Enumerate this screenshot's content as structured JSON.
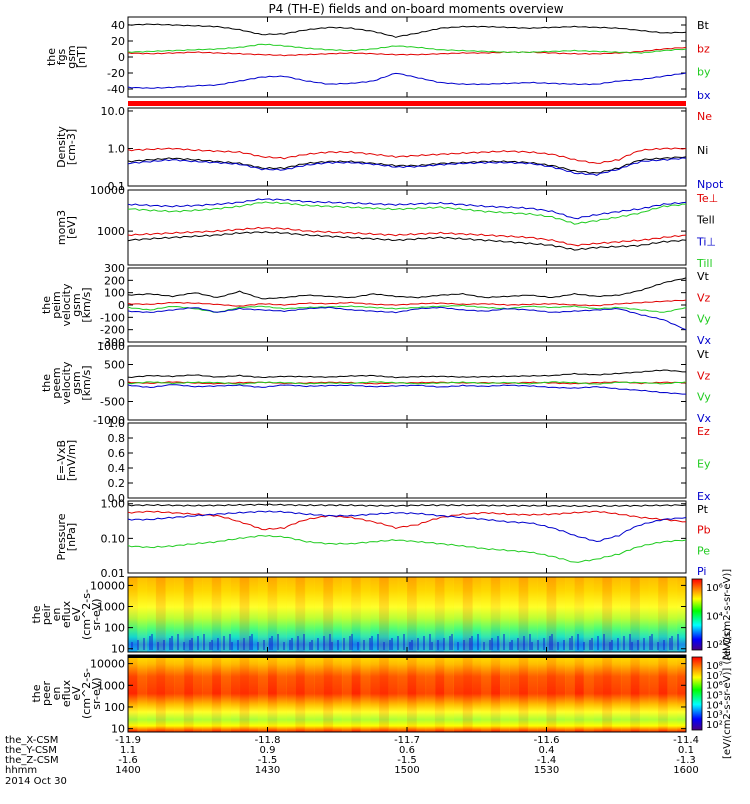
{
  "title": "P4 (TH-E) fields and on-board moments overview",
  "colors": {
    "black": "#000000",
    "red": "#e00000",
    "green": "#22cc22",
    "blue": "#0000cc"
  },
  "chart_data": [
    {
      "type": "line",
      "id": "fgs",
      "ylabel": [
        "the",
        "fgs",
        "gsm",
        "[nT]"
      ],
      "ylim": [
        -50,
        50
      ],
      "ticks": [
        "40",
        "20",
        "0",
        "-20",
        "-40"
      ],
      "legend": [
        {
          "label": "Bt",
          "color": "black"
        },
        {
          "label": "bz",
          "color": "red"
        },
        {
          "label": "by",
          "color": "green"
        },
        {
          "label": "bx",
          "color": "blue"
        }
      ],
      "series": [
        {
          "name": "Bt",
          "color": "black",
          "values": [
            40,
            41,
            40,
            39,
            38,
            34,
            28,
            29,
            34,
            37,
            36,
            32,
            25,
            30,
            36,
            38,
            38,
            37,
            36,
            37,
            38,
            37,
            36,
            33,
            30,
            31
          ]
        },
        {
          "name": "bz",
          "color": "red",
          "values": [
            5,
            4,
            5,
            6,
            5,
            4,
            3,
            2,
            3,
            4,
            5,
            4,
            3,
            3,
            4,
            5,
            5,
            6,
            6,
            5,
            4,
            4,
            5,
            7,
            10,
            12
          ]
        },
        {
          "name": "by",
          "color": "green",
          "values": [
            6,
            7,
            8,
            9,
            10,
            12,
            16,
            14,
            11,
            9,
            8,
            10,
            14,
            12,
            9,
            8,
            7,
            6,
            6,
            7,
            8,
            7,
            6,
            5,
            8,
            10
          ]
        },
        {
          "name": "bx",
          "color": "blue",
          "values": [
            -38,
            -39,
            -38,
            -36,
            -35,
            -30,
            -25,
            -24,
            -30,
            -34,
            -33,
            -30,
            -20,
            -26,
            -32,
            -34,
            -34,
            -33,
            -32,
            -33,
            -34,
            -34,
            -30,
            -28,
            -24,
            -20
          ]
        }
      ]
    },
    {
      "type": "line",
      "id": "density",
      "scale": "log",
      "ylabel": [
        "Density",
        "[cm-3]"
      ],
      "ylim": [
        0.1,
        12
      ],
      "ticks": [
        "10.0",
        "1.0",
        "0.1"
      ],
      "legend": [
        {
          "label": "Ne",
          "color": "red"
        },
        {
          "label": "Ni",
          "color": "black"
        },
        {
          "label": "Npot",
          "color": "blue"
        }
      ],
      "series": [
        {
          "name": "Ne",
          "color": "red",
          "values": [
            0.9,
            0.95,
            1.0,
            0.9,
            0.85,
            0.8,
            0.6,
            0.55,
            0.7,
            0.8,
            0.8,
            0.7,
            0.6,
            0.65,
            0.7,
            0.75,
            0.8,
            0.85,
            0.8,
            0.7,
            0.5,
            0.4,
            0.5,
            0.9,
            1.0,
            1.0
          ]
        },
        {
          "name": "Ni",
          "color": "black",
          "values": [
            0.45,
            0.5,
            0.55,
            0.5,
            0.45,
            0.4,
            0.3,
            0.3,
            0.4,
            0.45,
            0.45,
            0.4,
            0.35,
            0.35,
            0.4,
            0.42,
            0.45,
            0.45,
            0.42,
            0.35,
            0.25,
            0.22,
            0.3,
            0.5,
            0.55,
            0.6
          ]
        },
        {
          "name": "Npot",
          "color": "blue",
          "values": [
            0.4,
            0.45,
            0.5,
            0.45,
            0.42,
            0.38,
            0.28,
            0.27,
            0.36,
            0.42,
            0.42,
            0.38,
            0.32,
            0.33,
            0.37,
            0.4,
            0.42,
            0.42,
            0.4,
            0.32,
            0.22,
            0.2,
            0.28,
            0.45,
            0.5,
            0.55
          ]
        }
      ]
    },
    {
      "type": "line",
      "id": "temp",
      "scale": "log",
      "ylabel": [
        "mom3",
        "[eV]"
      ],
      "ylim": [
        150,
        10000
      ],
      "ticks": [
        "10000",
        "1000"
      ],
      "legend": [
        {
          "label": "Te⊥",
          "color": "red"
        },
        {
          "label": "Tell",
          "color": "black"
        },
        {
          "label": "Ti⊥",
          "color": "blue"
        },
        {
          "label": "Till",
          "color": "green"
        }
      ],
      "series": [
        {
          "name": "Te⊥",
          "color": "red",
          "values": [
            800,
            850,
            900,
            950,
            1000,
            1100,
            1200,
            1150,
            1000,
            950,
            900,
            850,
            800,
            850,
            900,
            850,
            800,
            750,
            700,
            600,
            450,
            500,
            550,
            600,
            700,
            800
          ]
        },
        {
          "name": "Tell",
          "color": "black",
          "values": [
            600,
            650,
            700,
            750,
            800,
            900,
            950,
            900,
            800,
            750,
            700,
            650,
            600,
            650,
            700,
            650,
            600,
            550,
            500,
            450,
            350,
            400,
            420,
            450,
            550,
            600
          ]
        },
        {
          "name": "Ti⊥",
          "color": "blue",
          "values": [
            4500,
            4200,
            4000,
            4200,
            4500,
            5000,
            6000,
            5800,
            5200,
            5000,
            4800,
            4600,
            4400,
            4600,
            4800,
            4400,
            4000,
            3800,
            3600,
            3000,
            2000,
            2500,
            3000,
            3500,
            4500,
            5000
          ]
        },
        {
          "name": "Till",
          "color": "green",
          "values": [
            3500,
            3200,
            3000,
            3200,
            3500,
            4000,
            5000,
            4800,
            4200,
            4000,
            3800,
            3600,
            3400,
            3600,
            3800,
            3400,
            3000,
            2800,
            2600,
            2200,
            1500,
            1800,
            2200,
            2800,
            4000,
            4500
          ]
        }
      ]
    },
    {
      "type": "line",
      "id": "vel_peim",
      "ylabel": [
        "the",
        "peim",
        "velocity",
        "gsm",
        "[km/s]"
      ],
      "ylim": [
        -300,
        300
      ],
      "ticks": [
        "300",
        "200",
        "100",
        "0",
        "-100",
        "-200",
        "-300"
      ],
      "legend": [
        {
          "label": "Vt",
          "color": "black"
        },
        {
          "label": "Vz",
          "color": "red"
        },
        {
          "label": "Vy",
          "color": "green"
        },
        {
          "label": "Vx",
          "color": "blue"
        }
      ],
      "series": [
        {
          "name": "Vt",
          "color": "black",
          "values": [
            80,
            90,
            70,
            100,
            60,
            110,
            50,
            60,
            80,
            70,
            60,
            90,
            70,
            60,
            80,
            90,
            60,
            70,
            80,
            60,
            90,
            70,
            80,
            120,
            180,
            220
          ]
        },
        {
          "name": "Vz",
          "color": "red",
          "values": [
            10,
            5,
            20,
            15,
            5,
            -10,
            10,
            0,
            15,
            10,
            20,
            5,
            0,
            10,
            15,
            5,
            10,
            0,
            5,
            10,
            0,
            -5,
            10,
            20,
            30,
            40
          ]
        },
        {
          "name": "Vy",
          "color": "green",
          "values": [
            -20,
            -40,
            -10,
            -30,
            -60,
            -20,
            -10,
            -30,
            -20,
            -15,
            -10,
            -20,
            -30,
            -20,
            -10,
            -5,
            -20,
            -30,
            -10,
            -20,
            -10,
            -30,
            -20,
            -40,
            -60,
            -20
          ]
        },
        {
          "name": "Vx",
          "color": "blue",
          "values": [
            -50,
            -60,
            -40,
            -20,
            -60,
            -30,
            -40,
            -50,
            -30,
            -20,
            -40,
            -50,
            -60,
            -30,
            -20,
            -40,
            -50,
            -30,
            -40,
            -60,
            -50,
            -40,
            -30,
            -80,
            -120,
            -200
          ]
        }
      ]
    },
    {
      "type": "line",
      "id": "vel_peem",
      "ylabel": [
        "the",
        "peem",
        "velocity",
        "gsm",
        "[km/s]"
      ],
      "ylim": [
        -1000,
        1000
      ],
      "ticks": [
        "1000",
        "500",
        "0",
        "-500",
        "-1000"
      ],
      "legend": [
        {
          "label": "Vt",
          "color": "black"
        },
        {
          "label": "Vz",
          "color": "red"
        },
        {
          "label": "Vy",
          "color": "green"
        },
        {
          "label": "Vx",
          "color": "blue"
        }
      ],
      "series": [
        {
          "name": "Vt",
          "color": "black",
          "values": [
            150,
            200,
            180,
            220,
            160,
            200,
            150,
            180,
            170,
            160,
            190,
            200,
            150,
            170,
            180,
            160,
            170,
            180,
            190,
            200,
            250,
            220,
            260,
            300,
            350,
            300
          ]
        },
        {
          "name": "Vz",
          "color": "red",
          "values": [
            20,
            -10,
            30,
            0,
            -20,
            10,
            20,
            -10,
            0,
            20,
            10,
            -20,
            0,
            10,
            20,
            0,
            10,
            -10,
            20,
            0,
            -20,
            10,
            30,
            -10,
            20,
            10
          ]
        },
        {
          "name": "Vy",
          "color": "green",
          "values": [
            -20,
            30,
            -10,
            20,
            10,
            -30,
            20,
            10,
            -20,
            0,
            -10,
            30,
            10,
            -20,
            0,
            20,
            -10,
            10,
            -20,
            30,
            10,
            -30,
            20,
            10,
            -20,
            30
          ]
        },
        {
          "name": "Vx",
          "color": "blue",
          "values": [
            -60,
            -120,
            -40,
            -100,
            -80,
            -60,
            -120,
            -50,
            -90,
            -70,
            -60,
            -100,
            -80,
            -60,
            -110,
            -70,
            -90,
            -60,
            -80,
            -120,
            -140,
            -100,
            -160,
            -200,
            -260,
            -300
          ]
        }
      ]
    },
    {
      "type": "line",
      "id": "efield",
      "ylabel": [
        "E=-VxB",
        "[mV/m]"
      ],
      "ylim": [
        0,
        1
      ],
      "ticks": [
        "1.0",
        "0.8",
        "0.6",
        "0.4",
        "0.2",
        "0.0"
      ],
      "legend": [
        {
          "label": "Ez",
          "color": "red"
        },
        {
          "label": "Ey",
          "color": "green"
        },
        {
          "label": "Ex",
          "color": "blue"
        }
      ],
      "series": []
    },
    {
      "type": "line",
      "id": "pressure",
      "scale": "log",
      "ylabel": [
        "Pressure",
        "[nPa]"
      ],
      "ylim": [
        0.01,
        1.2
      ],
      "ticks": [
        "1.00",
        "0.10",
        "0.01"
      ],
      "legend": [
        {
          "label": "Pt",
          "color": "black"
        },
        {
          "label": "Pb",
          "color": "red"
        },
        {
          "label": "Pe",
          "color": "green"
        },
        {
          "label": "Pi",
          "color": "blue"
        }
      ],
      "series": [
        {
          "name": "Pt",
          "color": "black",
          "values": [
            0.9,
            0.92,
            0.9,
            0.88,
            0.9,
            0.92,
            0.95,
            0.93,
            0.9,
            0.91,
            0.9,
            0.88,
            0.87,
            0.9,
            0.91,
            0.9,
            0.89,
            0.88,
            0.88,
            0.87,
            0.86,
            0.86,
            0.87,
            0.88,
            0.9,
            0.92
          ]
        },
        {
          "name": "Pb",
          "color": "red",
          "values": [
            0.55,
            0.6,
            0.55,
            0.5,
            0.45,
            0.3,
            0.18,
            0.2,
            0.35,
            0.45,
            0.4,
            0.3,
            0.2,
            0.25,
            0.4,
            0.5,
            0.55,
            0.5,
            0.48,
            0.5,
            0.55,
            0.6,
            0.5,
            0.4,
            0.35,
            0.3
          ]
        },
        {
          "name": "Pe",
          "color": "green",
          "values": [
            0.06,
            0.055,
            0.06,
            0.07,
            0.08,
            0.1,
            0.12,
            0.11,
            0.08,
            0.07,
            0.07,
            0.08,
            0.09,
            0.08,
            0.07,
            0.06,
            0.05,
            0.045,
            0.04,
            0.03,
            0.02,
            0.025,
            0.035,
            0.06,
            0.08,
            0.09
          ]
        },
        {
          "name": "Pi",
          "color": "blue",
          "values": [
            0.35,
            0.35,
            0.4,
            0.45,
            0.5,
            0.55,
            0.6,
            0.58,
            0.5,
            0.45,
            0.45,
            0.5,
            0.55,
            0.52,
            0.45,
            0.4,
            0.35,
            0.3,
            0.28,
            0.2,
            0.12,
            0.08,
            0.12,
            0.25,
            0.35,
            0.4
          ]
        }
      ]
    },
    {
      "type": "heatmap",
      "id": "peir",
      "ylabel": [
        "the",
        "peir",
        "en",
        "eflux",
        "eV",
        "(cm^2-s-",
        "sr-eV)"
      ],
      "scale": "log",
      "ylim": [
        7,
        25000
      ],
      "ticks": [
        "10000",
        "1000",
        "100",
        "10"
      ],
      "colorbar": {
        "ticks": [
          "10⁶",
          "10⁴",
          "10²"
        ],
        "label": "[eV/(cm2-s-sr-eV)]"
      }
    },
    {
      "type": "heatmap",
      "id": "peer",
      "ylabel": [
        "the",
        "peer",
        "en",
        "eflux",
        "eV",
        "(cm^2-s-",
        "sr-eV)"
      ],
      "scale": "log",
      "ylim": [
        7,
        25000
      ],
      "ticks": [
        "10000",
        "1000",
        "100",
        "10"
      ],
      "colorbar": {
        "ticks": [
          "10⁸",
          "10⁷",
          "10⁶",
          "10⁵",
          "10⁴",
          "10³",
          "10²"
        ],
        "label": "[eV/(cm2-s-sr-eV)] (All Qs)"
      }
    }
  ],
  "x_axis": {
    "ticks": [
      "-11.9",
      "-11.8",
      "-11.7",
      "-11.6",
      "-11.4"
    ],
    "rows": [
      {
        "label": "the_X-CSM",
        "values": [
          "-11.9",
          "-11.8",
          "-11.7",
          "-11.6",
          "-11.4"
        ]
      },
      {
        "label": "the_Y-CSM",
        "values": [
          "1.1",
          "0.9",
          "0.6",
          "0.4",
          "0.1"
        ]
      },
      {
        "label": "the_Z-CSM",
        "values": [
          "-1.6",
          "-1.5",
          "-1.5",
          "-1.4",
          "-1.3"
        ]
      },
      {
        "label": "hhmm",
        "values": [
          "1400",
          "1430",
          "1500",
          "1530",
          "1600"
        ]
      }
    ],
    "date": "2014 Oct 30"
  }
}
